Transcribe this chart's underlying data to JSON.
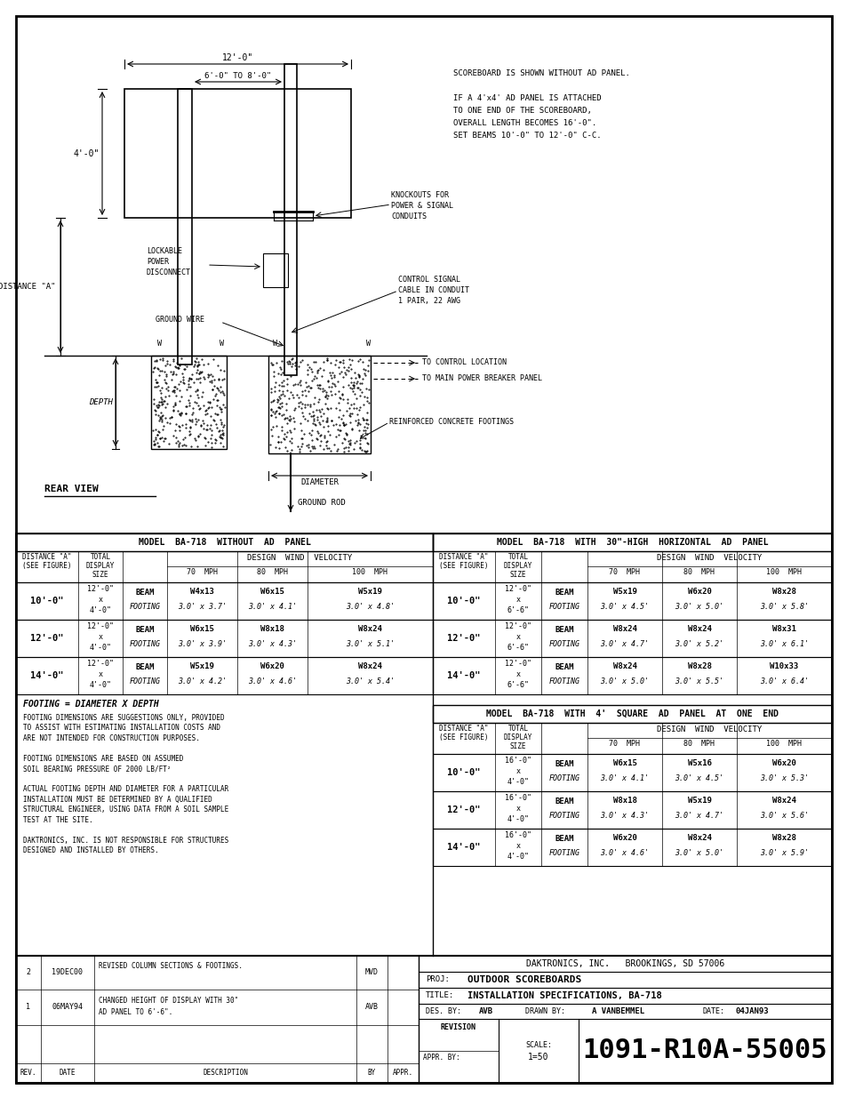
{
  "page_bg": "#ffffff",
  "title_block": {
    "company": "DAKTRONICS, INC.   BROOKINGS, SD 57006",
    "proj": "OUTDOOR SCOREBOARDS",
    "title": "INSTALLATION SPECIFICATIONS, BA-718",
    "des_by": "AVB",
    "drawn_by": "A VANBEMMEL",
    "date": "04JAN93",
    "scale": "1=50",
    "drawing_num": "1091-R10A-55005"
  },
  "revision_block": [
    {
      "rev": "2",
      "date": "19DEC00",
      "description": "REVISED COLUMN SECTIONS & FOOTINGS.",
      "by": "MVD"
    },
    {
      "rev": "1",
      "date": "06MAY94",
      "description": "CHANGED HEIGHT OF DISPLAY WITH 30\"\nAD PANEL TO 6'-6\".",
      "by": "AVB"
    }
  ],
  "diagram_notes": [
    "SCOREBOARD IS SHOWN WITHOUT AD PANEL.",
    "",
    "IF A 4'x4' AD PANEL IS ATTACHED",
    "TO ONE END OF THE SCOREBOARD,",
    "OVERALL LENGTH BECOMES 16'-0\".",
    "SET BEAMS 10'-0\" TO 12'-0\" C-C."
  ],
  "labels": {
    "dim1": "12'-0\"",
    "dim2": "6'-0\" TO 8'-0\"",
    "dim3": "4'-0\"",
    "dist_a": "DISTANCE \"A\"",
    "depth": "DEPTH",
    "diameter": "DIAMETER",
    "rear_view": "REAR VIEW",
    "lockable_line1": "LOCKABLE",
    "lockable_line2": "POWER",
    "lockable_line3": "DISCONNECT",
    "ground_wire": "GROUND WIRE",
    "knockouts_line1": "KNOCKOUTS FOR",
    "knockouts_line2": "POWER & SIGNAL",
    "knockouts_line3": "CONDUITS",
    "control_line1": "CONTROL SIGNAL",
    "control_line2": "CABLE IN CONDUIT",
    "control_line3": "1 PAIR, 22 AWG",
    "to_control": "TO CONTROL LOCATION",
    "to_power": "TO MAIN POWER BREAKER PANEL",
    "reinforced": "REINFORCED CONCRETE FOOTINGS",
    "ground_rod": "GROUND ROD",
    "footing_eq": "FOOTING = DIAMETER X DEPTH"
  },
  "table1": {
    "title": "MODEL  BA-718  WITHOUT  AD  PANEL",
    "rows": [
      [
        "10'-0\"",
        "12'-0\"\nx\n4'-0\"",
        "BEAM",
        "FOOTING",
        "W4x13",
        "3.0' x 3.7'",
        "W6x15",
        "3.0' x 4.1'",
        "W5x19",
        "3.0' x 4.8'"
      ],
      [
        "12'-0\"",
        "12'-0\"\nx\n4'-0\"",
        "BEAM",
        "FOOTING",
        "W6x15",
        "3.0' x 3.9'",
        "W8x18",
        "3.0' x 4.3'",
        "W8x24",
        "3.0' x 5.1'"
      ],
      [
        "14'-0\"",
        "12'-0\"\nx\n4'-0\"",
        "BEAM",
        "FOOTING",
        "W5x19",
        "3.0' x 4.2'",
        "W6x20",
        "3.0' x 4.6'",
        "W8x24",
        "3.0' x 5.4'"
      ]
    ]
  },
  "table2": {
    "title": "MODEL  BA-718  WITH  30\"-HIGH  HORIZONTAL  AD  PANEL",
    "rows": [
      [
        "10'-0\"",
        "12'-0\"\nx\n6'-6\"",
        "BEAM",
        "FOOTING",
        "W5x19",
        "3.0' x 4.5'",
        "W6x20",
        "3.0' x 5.0'",
        "W8x28",
        "3.0' x 5.8'"
      ],
      [
        "12'-0\"",
        "12'-0\"\nx\n6'-6\"",
        "BEAM",
        "FOOTING",
        "W8x24",
        "3.0' x 4.7'",
        "W8x24",
        "3.0' x 5.2'",
        "W8x31",
        "3.0' x 6.1'"
      ],
      [
        "14'-0\"",
        "12'-0\"\nx\n6'-6\"",
        "BEAM",
        "FOOTING",
        "W8x24",
        "3.0' x 5.0'",
        "W8x28",
        "3.0' x 5.5'",
        "W10x33",
        "3.0' x 6.4'"
      ]
    ]
  },
  "table3": {
    "title": "MODEL  BA-718  WITH  4'  SQUARE  AD  PANEL  AT  ONE  END",
    "rows": [
      [
        "10'-0\"",
        "16'-0\"\nx\n4'-0\"",
        "BEAM",
        "FOOTING",
        "W6x15",
        "3.0' x 4.1'",
        "W5x16",
        "3.0' x 4.5'",
        "W6x20",
        "3.0' x 5.3'"
      ],
      [
        "12'-0\"",
        "16'-0\"\nx\n4'-0\"",
        "BEAM",
        "FOOTING",
        "W8x18",
        "3.0' x 4.3'",
        "W5x19",
        "3.0' x 4.7'",
        "W8x24",
        "3.0' x 5.6'"
      ],
      [
        "14'-0\"",
        "16'-0\"\nx\n4'-0\"",
        "BEAM",
        "FOOTING",
        "W6x20",
        "3.0' x 4.6'",
        "W8x24",
        "3.0' x 5.0'",
        "W8x28",
        "3.0' x 5.9'"
      ]
    ]
  },
  "notes_text": [
    "FOOTING DIMENSIONS ARE SUGGESTIONS ONLY, PROVIDED",
    "TO ASSIST WITH ESTIMATING INSTALLATION COSTS AND",
    "ARE NOT INTENDED FOR CONSTRUCTION PURPOSES.",
    "",
    "FOOTING DIMENSIONS ARE BASED ON ASSUMED",
    "SOIL BEARING PRESSURE OF 2000 LB/FT²",
    "",
    "ACTUAL FOOTING DEPTH AND DIAMETER FOR A PARTICULAR",
    "INSTALLATION MUST BE DETERMINED BY A QUALIFIED",
    "STRUCTURAL ENGINEER, USING DATA FROM A SOIL SAMPLE",
    "TEST AT THE SITE.",
    "",
    "DAKTRONICS, INC. IS NOT RESPONSIBLE FOR STRUCTURES",
    "DESIGNED AND INSTALLED BY OTHERS."
  ]
}
